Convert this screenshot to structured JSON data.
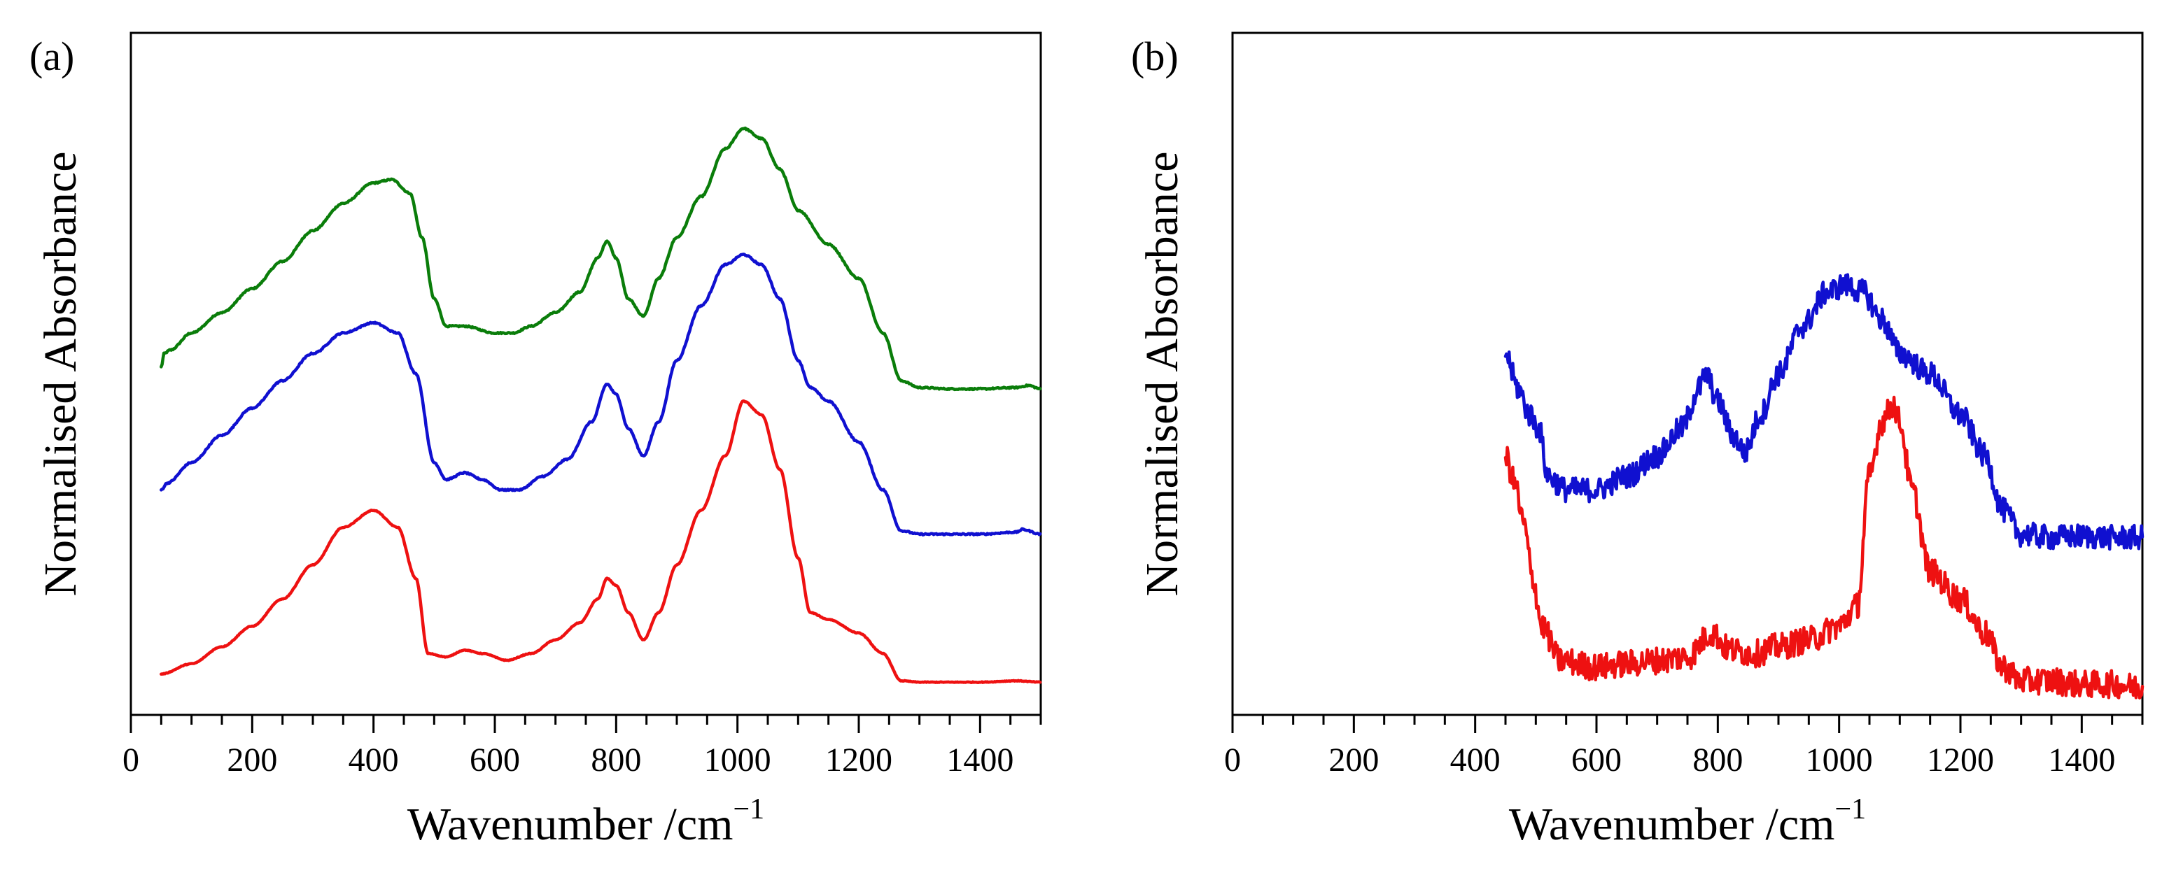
{
  "chart_data": [
    {
      "type": "line",
      "panel_label": "(a)",
      "xlabel": "Wavenumber /cm",
      "xlabel_sup": "−1",
      "ylabel": "Normalised Absorbance",
      "xlim": [
        0,
        1500
      ],
      "ylim": [
        0,
        1
      ],
      "x_ticks": [
        0,
        200,
        400,
        600,
        800,
        1000,
        1200,
        1400
      ],
      "x_minor_step": 50,
      "y_ticks_shown": false,
      "grid": false,
      "legend": "none",
      "series": [
        {
          "color": "#0a7d0a",
          "noise": 0.001,
          "points": [
            [
              50,
              0.51
            ],
            [
              55,
              0.53
            ],
            [
              65,
              0.535
            ],
            [
              100,
              0.56
            ],
            [
              150,
              0.59
            ],
            [
              200,
              0.625
            ],
            [
              250,
              0.665
            ],
            [
              300,
              0.71
            ],
            [
              350,
              0.75
            ],
            [
              400,
              0.78
            ],
            [
              430,
              0.785
            ],
            [
              460,
              0.765
            ],
            [
              480,
              0.7
            ],
            [
              500,
              0.61
            ],
            [
              520,
              0.57
            ],
            [
              550,
              0.57
            ],
            [
              600,
              0.56
            ],
            [
              630,
              0.56
            ],
            [
              660,
              0.57
            ],
            [
              700,
              0.59
            ],
            [
              740,
              0.62
            ],
            [
              770,
              0.67
            ],
            [
              785,
              0.695
            ],
            [
              800,
              0.67
            ],
            [
              820,
              0.61
            ],
            [
              845,
              0.585
            ],
            [
              870,
              0.64
            ],
            [
              900,
              0.7
            ],
            [
              940,
              0.76
            ],
            [
              980,
              0.83
            ],
            [
              1010,
              0.86
            ],
            [
              1040,
              0.845
            ],
            [
              1070,
              0.8
            ],
            [
              1100,
              0.74
            ],
            [
              1150,
              0.69
            ],
            [
              1200,
              0.64
            ],
            [
              1240,
              0.56
            ],
            [
              1270,
              0.49
            ],
            [
              1300,
              0.48
            ],
            [
              1350,
              0.478
            ],
            [
              1400,
              0.478
            ],
            [
              1460,
              0.48
            ],
            [
              1480,
              0.483
            ],
            [
              1500,
              0.478
            ]
          ]
        },
        {
          "color": "#1010d0",
          "noise": 0.001,
          "points": [
            [
              50,
              0.33
            ],
            [
              60,
              0.34
            ],
            [
              100,
              0.37
            ],
            [
              150,
              0.41
            ],
            [
              200,
              0.45
            ],
            [
              250,
              0.49
            ],
            [
              300,
              0.53
            ],
            [
              350,
              0.56
            ],
            [
              400,
              0.575
            ],
            [
              440,
              0.56
            ],
            [
              470,
              0.5
            ],
            [
              500,
              0.37
            ],
            [
              520,
              0.345
            ],
            [
              550,
              0.355
            ],
            [
              580,
              0.345
            ],
            [
              610,
              0.33
            ],
            [
              640,
              0.33
            ],
            [
              680,
              0.35
            ],
            [
              720,
              0.375
            ],
            [
              760,
              0.43
            ],
            [
              785,
              0.485
            ],
            [
              800,
              0.47
            ],
            [
              820,
              0.42
            ],
            [
              845,
              0.38
            ],
            [
              870,
              0.43
            ],
            [
              900,
              0.52
            ],
            [
              940,
              0.6
            ],
            [
              980,
              0.66
            ],
            [
              1010,
              0.675
            ],
            [
              1040,
              0.66
            ],
            [
              1070,
              0.61
            ],
            [
              1100,
              0.52
            ],
            [
              1120,
              0.48
            ],
            [
              1150,
              0.46
            ],
            [
              1200,
              0.4
            ],
            [
              1240,
              0.33
            ],
            [
              1270,
              0.27
            ],
            [
              1300,
              0.265
            ],
            [
              1350,
              0.265
            ],
            [
              1400,
              0.265
            ],
            [
              1460,
              0.268
            ],
            [
              1470,
              0.272
            ],
            [
              1500,
              0.265
            ]
          ]
        },
        {
          "color": "#ee1111",
          "noise": 0.0005,
          "points": [
            [
              50,
              0.06
            ],
            [
              100,
              0.075
            ],
            [
              150,
              0.1
            ],
            [
              200,
              0.13
            ],
            [
              250,
              0.17
            ],
            [
              300,
              0.22
            ],
            [
              350,
              0.275
            ],
            [
              400,
              0.3
            ],
            [
              440,
              0.275
            ],
            [
              470,
              0.2
            ],
            [
              490,
              0.09
            ],
            [
              520,
              0.085
            ],
            [
              550,
              0.095
            ],
            [
              580,
              0.09
            ],
            [
              620,
              0.08
            ],
            [
              660,
              0.09
            ],
            [
              700,
              0.11
            ],
            [
              740,
              0.135
            ],
            [
              770,
              0.17
            ],
            [
              785,
              0.2
            ],
            [
              800,
              0.19
            ],
            [
              820,
              0.15
            ],
            [
              845,
              0.11
            ],
            [
              870,
              0.15
            ],
            [
              900,
              0.22
            ],
            [
              940,
              0.3
            ],
            [
              980,
              0.38
            ],
            [
              1010,
              0.46
            ],
            [
              1040,
              0.44
            ],
            [
              1070,
              0.36
            ],
            [
              1100,
              0.23
            ],
            [
              1120,
              0.15
            ],
            [
              1150,
              0.14
            ],
            [
              1200,
              0.12
            ],
            [
              1240,
              0.09
            ],
            [
              1270,
              0.05
            ],
            [
              1300,
              0.048
            ],
            [
              1400,
              0.048
            ],
            [
              1460,
              0.05
            ],
            [
              1500,
              0.048
            ]
          ]
        }
      ]
    },
    {
      "type": "line",
      "panel_label": "(b)",
      "xlabel": "Wavenumber /cm",
      "xlabel_sup": "−1",
      "ylabel": "Normalised Absorbance",
      "xlim": [
        0,
        1500
      ],
      "ylim": [
        0,
        1
      ],
      "x_ticks": [
        0,
        200,
        400,
        600,
        800,
        1000,
        1200,
        1400
      ],
      "x_minor_step": 50,
      "y_ticks_shown": false,
      "grid": false,
      "legend": "none",
      "series": [
        {
          "color": "#1010d0",
          "noise": 0.018,
          "points": [
            [
              450,
              0.53
            ],
            [
              470,
              0.48
            ],
            [
              490,
              0.44
            ],
            [
              505,
              0.42
            ],
            [
              520,
              0.35
            ],
            [
              550,
              0.33
            ],
            [
              600,
              0.33
            ],
            [
              650,
              0.35
            ],
            [
              700,
              0.38
            ],
            [
              740,
              0.42
            ],
            [
              770,
              0.48
            ],
            [
              780,
              0.5
            ],
            [
              800,
              0.46
            ],
            [
              825,
              0.41
            ],
            [
              845,
              0.385
            ],
            [
              870,
              0.44
            ],
            [
              900,
              0.5
            ],
            [
              940,
              0.57
            ],
            [
              980,
              0.62
            ],
            [
              1010,
              0.63
            ],
            [
              1040,
              0.62
            ],
            [
              1070,
              0.58
            ],
            [
              1100,
              0.53
            ],
            [
              1150,
              0.5
            ],
            [
              1200,
              0.44
            ],
            [
              1240,
              0.38
            ],
            [
              1270,
              0.3
            ],
            [
              1300,
              0.265
            ],
            [
              1350,
              0.26
            ],
            [
              1400,
              0.262
            ],
            [
              1450,
              0.26
            ],
            [
              1500,
              0.26
            ]
          ]
        },
        {
          "color": "#ee1111",
          "noise": 0.02,
          "points": [
            [
              450,
              0.38
            ],
            [
              465,
              0.34
            ],
            [
              480,
              0.28
            ],
            [
              495,
              0.2
            ],
            [
              510,
              0.13
            ],
            [
              540,
              0.08
            ],
            [
              600,
              0.07
            ],
            [
              650,
              0.075
            ],
            [
              700,
              0.08
            ],
            [
              750,
              0.085
            ],
            [
              790,
              0.12
            ],
            [
              820,
              0.095
            ],
            [
              860,
              0.09
            ],
            [
              900,
              0.1
            ],
            [
              950,
              0.11
            ],
            [
              1000,
              0.13
            ],
            [
              1030,
              0.16
            ],
            [
              1050,
              0.35
            ],
            [
              1070,
              0.43
            ],
            [
              1090,
              0.455
            ],
            [
              1100,
              0.43
            ],
            [
              1120,
              0.33
            ],
            [
              1150,
              0.21
            ],
            [
              1200,
              0.17
            ],
            [
              1240,
              0.12
            ],
            [
              1270,
              0.07
            ],
            [
              1300,
              0.05
            ],
            [
              1350,
              0.05
            ],
            [
              1400,
              0.045
            ],
            [
              1450,
              0.045
            ],
            [
              1500,
              0.04
            ]
          ]
        }
      ]
    }
  ]
}
